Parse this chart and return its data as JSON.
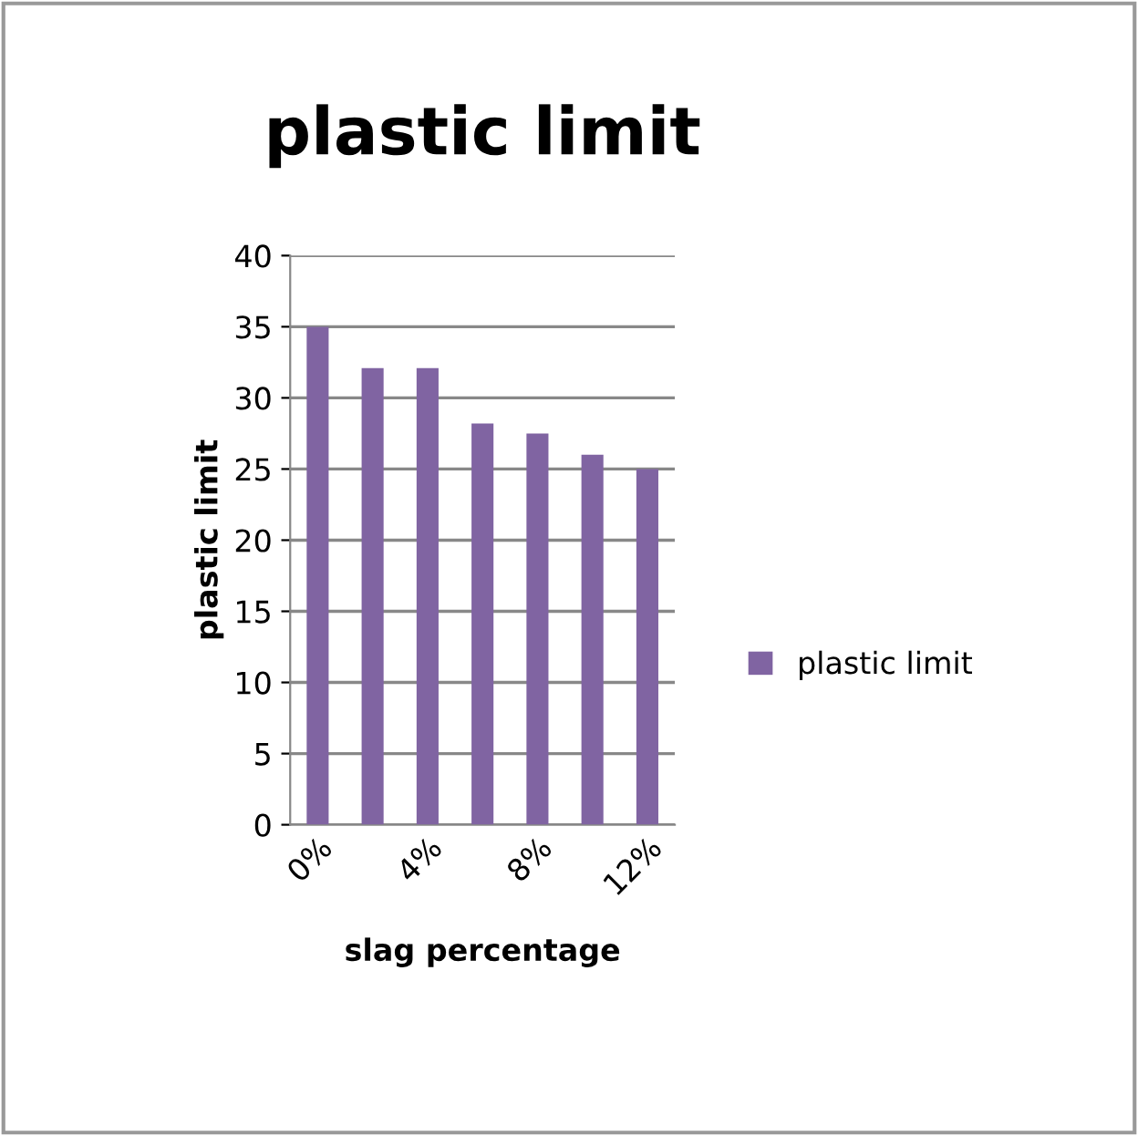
{
  "chart_data": {
    "type": "bar",
    "title": "plastic limit",
    "xlabel": "slag percentage",
    "ylabel": "plastic limit",
    "categories": [
      "0%",
      null,
      "4%",
      null,
      "8%",
      null,
      "12%"
    ],
    "series": [
      {
        "name": "plastic limit",
        "color": "#8064a2",
        "values": [
          35,
          32.1,
          32.1,
          28.2,
          27.5,
          26,
          25
        ]
      }
    ],
    "ylim": [
      0,
      40
    ],
    "yticks": [
      0,
      5,
      10,
      15,
      20,
      25,
      30,
      35,
      40
    ],
    "grid": "y",
    "legend": "right"
  }
}
